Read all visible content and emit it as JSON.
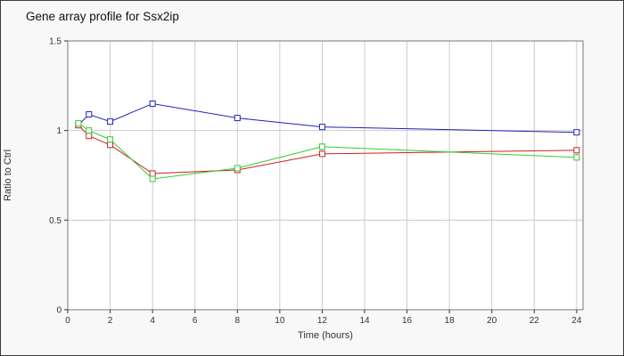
{
  "title": "Gene array profile for Ssx2ip",
  "chart_data": {
    "type": "line",
    "title": "Gene array profile for Ssx2ip",
    "xlabel": "Time (hours)",
    "ylabel": "Ratio to Ctrl",
    "xlim": [
      0,
      24.3
    ],
    "ylim": [
      0,
      1.5
    ],
    "x_ticks": [
      0,
      2,
      4,
      6,
      8,
      10,
      12,
      14,
      16,
      18,
      20,
      22,
      24
    ],
    "y_ticks": [
      0,
      0.5,
      1,
      1.5
    ],
    "y_tick_labels": [
      "0",
      "0.5",
      "1",
      "1.5"
    ],
    "grid": true,
    "legend": false,
    "marker": "open-square",
    "colors": {
      "plot_background": "#ffffff",
      "page_background": "#f8f8f8",
      "grid_line": "#cccccc",
      "axis_line": "#777777",
      "tick_text": "#333333"
    },
    "series": [
      {
        "name": "blue-series",
        "color": "#2020bb",
        "x": [
          0.5,
          1,
          2,
          4,
          8,
          12,
          24
        ],
        "values": [
          1.03,
          1.09,
          1.05,
          1.15,
          1.07,
          1.02,
          0.99
        ]
      },
      {
        "name": "red-series",
        "color": "#cc2222",
        "x": [
          0.5,
          1,
          2,
          4,
          8,
          12,
          24
        ],
        "values": [
          1.03,
          0.97,
          0.92,
          0.76,
          0.78,
          0.87,
          0.89
        ]
      },
      {
        "name": "green-series",
        "color": "#33cc33",
        "x": [
          0.5,
          1,
          2,
          4,
          8,
          12,
          24
        ],
        "values": [
          1.04,
          1.0,
          0.95,
          0.73,
          0.79,
          0.91,
          0.85
        ]
      }
    ]
  }
}
